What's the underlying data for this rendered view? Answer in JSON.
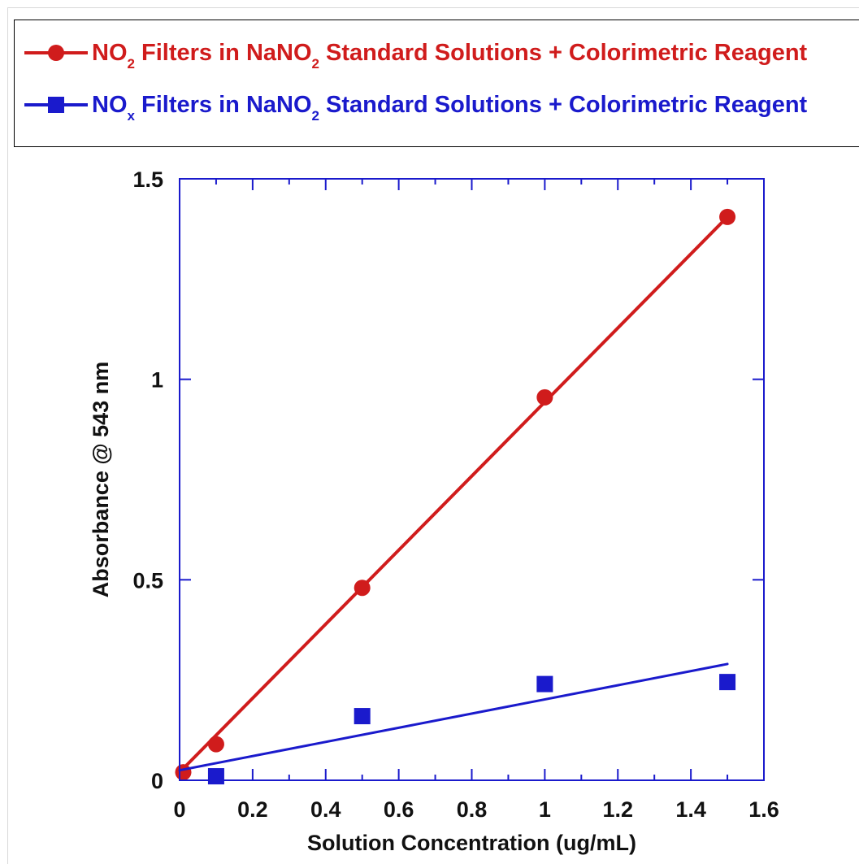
{
  "legend": {
    "entries": [
      {
        "parts": [
          "NO",
          "2",
          " Filters in NaNO",
          "2",
          " Standard Solutions + Colorimetric Reagent"
        ],
        "color": "#d01c1c",
        "marker": "circle"
      },
      {
        "parts": [
          "NO",
          "x",
          " Filters in NaNO",
          "2",
          " Standard Solutions + Colorimetric Reagent"
        ],
        "color": "#1a1acc",
        "marker": "square"
      }
    ]
  },
  "chart_data": {
    "type": "scatter",
    "title": "",
    "xlabel": "Solution Concentration (ug/mL)",
    "ylabel": "Absorbance @ 543 nm",
    "xlim": [
      0,
      1.6
    ],
    "ylim": [
      0,
      1.5
    ],
    "x_ticks": [
      "0",
      "0.2",
      "0.4",
      "0.6",
      "0.8",
      "1",
      "1.2",
      "1.4",
      "1.6"
    ],
    "y_ticks": [
      "0",
      "0.5",
      "1",
      "1.5"
    ],
    "grid": false,
    "axis_color": "#1a1acc",
    "series": [
      {
        "name": "NO2 Filters in NaNO2 Standard Solutions + Colorimetric Reagent",
        "marker": "circle",
        "color": "#d01c1c",
        "x": [
          0.01,
          0.1,
          0.5,
          1.0,
          1.5
        ],
        "y": [
          0.02,
          0.09,
          0.48,
          0.955,
          1.405
        ],
        "fit_line": [
          [
            0.0,
            0.02
          ],
          [
            1.5,
            1.405
          ]
        ]
      },
      {
        "name": "NOx Filters in NaNO2 Standard Solutions + Colorimetric Reagent",
        "marker": "square",
        "color": "#1a1acc",
        "x": [
          0.1,
          0.5,
          1.0,
          1.5
        ],
        "y": [
          0.01,
          0.16,
          0.24,
          0.245
        ],
        "fit_line": [
          [
            0.0,
            0.025
          ],
          [
            1.5,
            0.29
          ]
        ]
      }
    ]
  }
}
